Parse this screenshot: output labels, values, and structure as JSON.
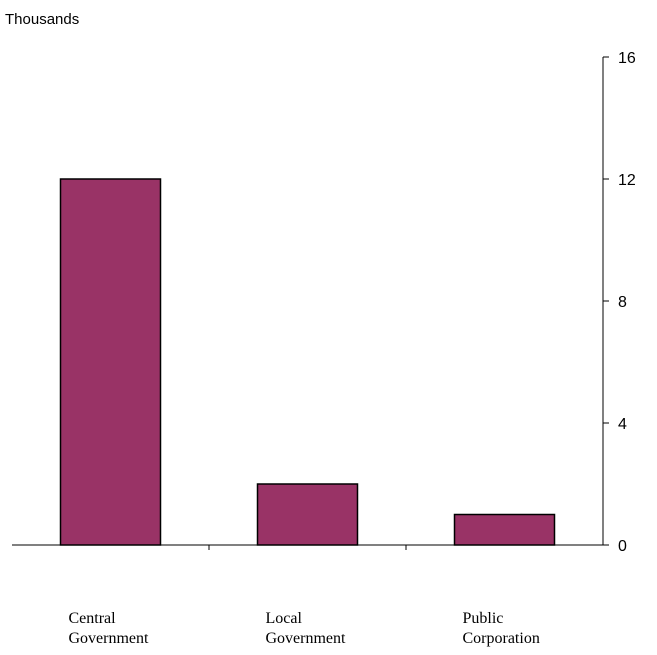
{
  "chart_data": {
    "type": "bar",
    "ylabel": "Thousands",
    "categories": [
      [
        "Central",
        "Government"
      ],
      [
        "Local",
        "Government"
      ],
      [
        "Public",
        "Corporation"
      ]
    ],
    "values": [
      12,
      2,
      1
    ],
    "ylim": [
      0,
      16
    ],
    "yticks": [
      0,
      4,
      8,
      12,
      16
    ],
    "y_axis_side": "right",
    "bar_color": "#993366",
    "grid": false
  }
}
